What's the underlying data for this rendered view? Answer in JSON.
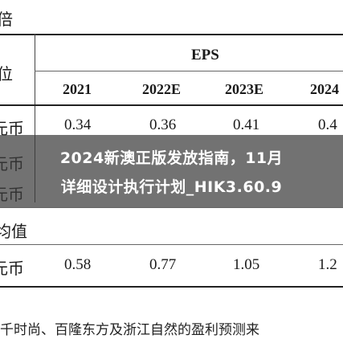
{
  "table": {
    "header_top_left": "倍",
    "unit_label": "位",
    "group_header": "EPS",
    "years": [
      "2021",
      "2022E",
      "2023E",
      "2024"
    ],
    "rows": [
      {
        "label": "元币",
        "values": [
          "0.34",
          "0.36",
          "0.41",
          "0.4"
        ]
      },
      {
        "label": "元币",
        "values": [
          "",
          "",
          "",
          ""
        ]
      },
      {
        "label": "元币",
        "values": [
          "",
          "",
          "",
          ""
        ]
      }
    ],
    "section_label": "均值",
    "mean_row": {
      "label": "元币",
      "values": [
        "0.58",
        "0.77",
        "1.05",
        "1.2"
      ]
    }
  },
  "overlay": {
    "line1": "2024新澳正版发放指南，11月",
    "line2": "详细设计执行计划_HIK3.60.9"
  },
  "caption": "千时尚、百隆东方及浙江自然的盈利预测来"
}
